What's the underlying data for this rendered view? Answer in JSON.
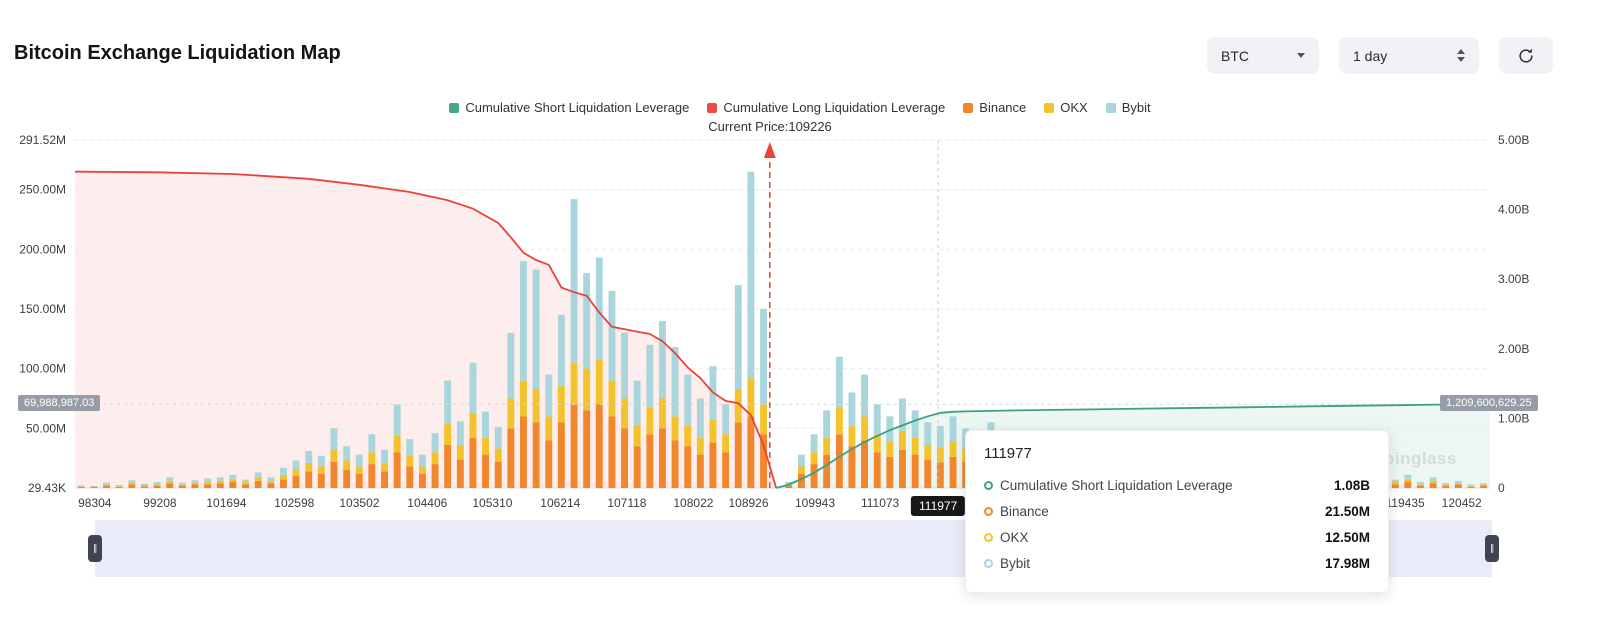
{
  "header": {
    "title": "Bitcoin Exchange Liquidation Map",
    "symbol_select": "BTC",
    "interval_select": "1 day",
    "icons": {
      "symbol_caret": "chevron-down",
      "interval_caret": "chevron-up-down",
      "refresh": "refresh-circular-arrows"
    }
  },
  "legend": {
    "items": [
      {
        "label": "Cumulative Short Liquidation Leverage",
        "color": "#43a98c"
      },
      {
        "label": "Cumulative Long Liquidation Leverage",
        "color": "#eb4b44"
      },
      {
        "label": "Binance",
        "color": "#f2862c"
      },
      {
        "label": "OKX",
        "color": "#f3c32e"
      },
      {
        "label": "Bybit",
        "color": "#a9d6dd"
      }
    ],
    "current_price_label": "Current Price:109226"
  },
  "tooltip": {
    "title": "111977",
    "rows": [
      {
        "name": "Cumulative Short Liquidation Leverage",
        "value": "1.08B",
        "color": "#3ba183"
      },
      {
        "name": "Binance",
        "value": "21.50M",
        "color": "#f2862c"
      },
      {
        "name": "OKX",
        "value": "12.50M",
        "color": "#f3c32e"
      },
      {
        "name": "Bybit",
        "value": "17.98M",
        "color": "#a9d6dd"
      }
    ]
  },
  "watermark": {
    "text": "oinglass"
  },
  "chart_data": {
    "type": "bar",
    "title": "Bitcoin Exchange Liquidation Map",
    "left_axis": {
      "unit": "M",
      "max_m": 291.52,
      "labels": [
        {
          "text": "291.52M",
          "value": 291.52
        },
        {
          "text": "250.00M",
          "value": 250
        },
        {
          "text": "200.00M",
          "value": 200
        },
        {
          "text": "150.00M",
          "value": 150
        },
        {
          "text": "100.00M",
          "value": 100
        },
        {
          "text": "50.00M",
          "value": 50
        },
        {
          "text": "29.43K",
          "value": 0
        }
      ]
    },
    "right_axis": {
      "unit": "B",
      "max_b": 5,
      "labels": [
        {
          "text": "5.00B",
          "value": 5
        },
        {
          "text": "4.00B",
          "value": 4
        },
        {
          "text": "3.00B",
          "value": 3
        },
        {
          "text": "2.00B",
          "value": 2
        },
        {
          "text": "1.00B",
          "value": 1
        },
        {
          "text": "0",
          "value": 0
        }
      ]
    },
    "x_ticks": [
      {
        "label": "98304",
        "f": 0.014
      },
      {
        "label": "99208",
        "f": 0.06
      },
      {
        "label": "101694",
        "f": 0.107
      },
      {
        "label": "102598",
        "f": 0.155
      },
      {
        "label": "103502",
        "f": 0.201
      },
      {
        "label": "104406",
        "f": 0.249
      },
      {
        "label": "105310",
        "f": 0.295
      },
      {
        "label": "106214",
        "f": 0.343
      },
      {
        "label": "107118",
        "f": 0.39
      },
      {
        "label": "108022",
        "f": 0.437
      },
      {
        "label": "108926",
        "f": 0.476
      },
      {
        "label": "109943",
        "f": 0.523
      },
      {
        "label": "111073",
        "f": 0.569
      },
      {
        "label": "119435",
        "f": 0.94
      },
      {
        "label": "120452",
        "f": 0.98
      }
    ],
    "hover_tick": {
      "label": "111977",
      "f": 0.61
    },
    "crosshair": {
      "x_frac": 0.61,
      "left_value_m": 69.99,
      "left_value_label": "69,988,987.03",
      "right_value_label": "1,209,600,629.25"
    },
    "annotations": {
      "current_price": {
        "price": 109226,
        "x_frac": 0.491
      }
    },
    "bars": {
      "unit": "M",
      "series": [
        {
          "name": "Binance",
          "color": "#f2862c",
          "values": [
            1,
            0.8,
            2,
            1,
            3,
            1.5,
            2,
            4,
            2,
            3,
            3,
            4,
            5,
            3,
            6,
            4,
            7,
            10,
            14,
            12,
            22,
            15,
            12,
            20,
            14,
            30,
            18,
            12,
            20,
            36,
            24,
            42,
            28,
            22,
            50,
            60,
            55,
            40,
            55,
            70,
            65,
            70,
            60,
            50,
            35,
            45,
            50,
            40,
            35,
            28,
            38,
            30,
            55,
            60,
            45,
            0,
            2,
            12,
            20,
            28,
            45,
            35,
            40,
            30,
            26,
            32,
            28,
            24,
            21.5,
            26,
            22,
            18,
            24,
            15,
            20,
            12,
            16,
            10,
            14,
            8,
            12,
            7,
            10,
            6,
            9,
            5,
            8,
            5,
            7,
            4,
            6,
            4,
            5,
            3,
            5,
            3,
            4,
            2,
            3,
            2,
            3,
            2,
            2,
            2,
            3,
            5,
            2,
            4,
            2,
            3,
            1,
            2
          ]
        },
        {
          "name": "OKX",
          "color": "#f3c32e",
          "values": [
            0.5,
            0.4,
            1,
            0.5,
            1.5,
            1,
            1,
            2,
            1,
            1.5,
            2,
            2,
            2,
            2,
            3,
            2,
            4,
            5,
            7,
            6,
            10,
            8,
            6,
            10,
            7,
            14,
            9,
            6,
            10,
            18,
            12,
            20,
            14,
            11,
            25,
            30,
            28,
            20,
            30,
            35,
            35,
            38,
            30,
            25,
            18,
            22,
            25,
            20,
            18,
            14,
            19,
            15,
            28,
            32,
            25,
            0,
            1,
            6,
            10,
            14,
            22,
            17,
            20,
            15,
            13,
            16,
            14,
            12,
            12.5,
            13,
            11,
            9,
            12,
            8,
            10,
            6,
            8,
            5,
            7,
            4,
            6,
            4,
            5,
            3,
            4,
            3,
            4,
            2,
            3,
            2,
            3,
            2,
            3,
            2,
            2,
            1,
            2,
            1,
            2,
            1,
            1,
            1,
            1,
            1,
            2,
            2,
            1,
            2,
            1,
            1,
            1,
            1
          ]
        },
        {
          "name": "Bybit",
          "color": "#a9d6dd",
          "values": [
            0.8,
            0.6,
            1.5,
            1,
            2,
            1,
            2,
            3,
            1.5,
            2,
            3,
            3,
            4,
            2,
            4,
            3,
            6,
            8,
            10,
            9,
            18,
            12,
            10,
            15,
            11,
            26,
            14,
            10,
            16,
            36,
            20,
            43,
            22,
            18,
            55,
            100,
            100,
            35,
            60,
            137,
            80,
            85,
            75,
            55,
            37,
            53,
            65,
            58,
            42,
            33,
            45,
            25,
            87,
            173,
            80,
            0,
            2,
            10,
            15,
            23,
            43,
            28,
            35,
            25,
            21,
            27,
            23,
            19,
            18,
            21,
            17,
            14,
            19,
            12,
            16,
            10,
            13,
            8,
            11,
            7,
            9,
            6,
            8,
            5,
            7,
            4,
            6,
            4,
            5,
            3,
            5,
            3,
            4,
            3,
            4,
            2,
            3,
            2,
            2,
            2,
            2,
            1,
            2,
            1,
            2,
            4,
            2,
            3,
            1,
            2,
            1,
            1
          ]
        }
      ]
    },
    "lines": [
      {
        "name": "Cumulative Long Liquidation Leverage",
        "axis": "left",
        "unit": "M",
        "color": "#e8443c",
        "fill": "rgba(235,75,68,0.10)",
        "keypoints": [
          [
            0,
            265
          ],
          [
            6,
            264.5
          ],
          [
            12,
            263
          ],
          [
            18,
            259
          ],
          [
            22,
            254
          ],
          [
            26,
            248
          ],
          [
            29,
            241
          ],
          [
            31,
            234
          ],
          [
            33,
            222
          ],
          [
            34,
            210
          ],
          [
            35,
            197
          ],
          [
            36,
            191
          ],
          [
            37,
            187
          ],
          [
            38,
            168
          ],
          [
            39,
            164
          ],
          [
            40,
            161
          ],
          [
            41,
            147
          ],
          [
            42,
            135
          ],
          [
            44,
            131
          ],
          [
            45,
            129
          ],
          [
            46,
            123
          ],
          [
            47,
            113
          ],
          [
            48,
            101
          ],
          [
            49,
            92
          ],
          [
            50,
            80
          ],
          [
            51,
            73
          ],
          [
            52,
            71
          ],
          [
            53,
            61
          ],
          [
            54,
            36
          ],
          [
            55,
            0
          ]
        ]
      },
      {
        "name": "Cumulative Short Liquidation Leverage",
        "axis": "right",
        "unit": "B",
        "color": "#3ba183",
        "fill": "rgba(67,169,140,0.10)",
        "keypoints": [
          [
            55,
            0
          ],
          [
            56,
            0.05
          ],
          [
            57,
            0.13
          ],
          [
            58,
            0.22
          ],
          [
            59,
            0.33
          ],
          [
            60,
            0.45
          ],
          [
            61,
            0.56
          ],
          [
            62,
            0.66
          ],
          [
            63,
            0.75
          ],
          [
            64,
            0.83
          ],
          [
            65,
            0.9
          ],
          [
            66,
            0.97
          ],
          [
            67,
            1.03
          ],
          [
            68,
            1.08
          ],
          [
            69,
            1.095
          ],
          [
            70,
            1.1
          ],
          [
            74,
            1.115
          ],
          [
            80,
            1.13
          ],
          [
            86,
            1.145
          ],
          [
            92,
            1.16
          ],
          [
            98,
            1.175
          ],
          [
            104,
            1.19
          ],
          [
            108,
            1.2
          ],
          [
            111,
            1.209
          ]
        ]
      }
    ]
  }
}
